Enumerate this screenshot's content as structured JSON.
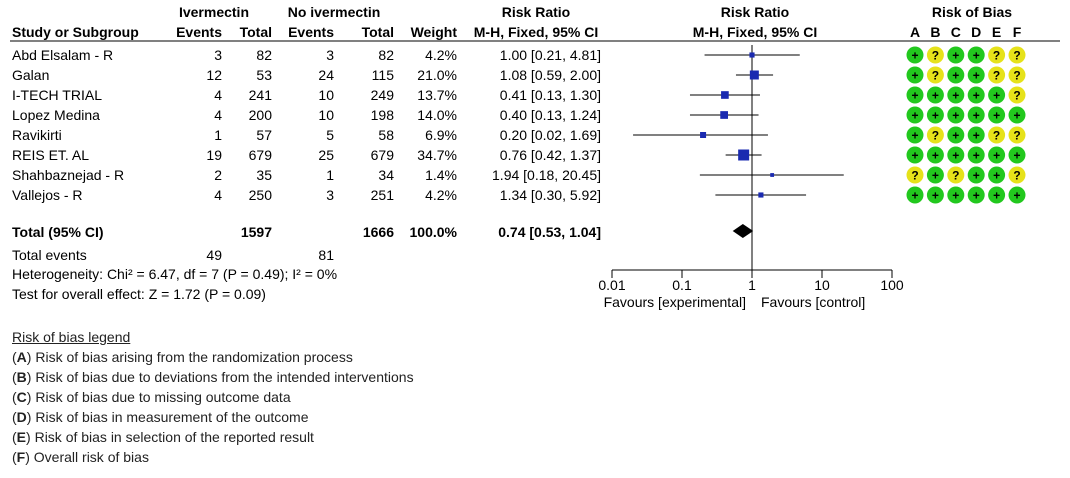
{
  "headers": {
    "group1": "Ivermectin",
    "group2": "No ivermectin",
    "study": "Study or Subgroup",
    "events": "Events",
    "total": "Total",
    "weight": "Weight",
    "rr_title": "Risk Ratio",
    "rr_method": "M-H, Fixed, 95% CI",
    "plot_title": "Risk Ratio",
    "plot_method": "M-H, Fixed, 95% CI",
    "rob_title": "Risk of Bias",
    "rob_letters": [
      "A",
      "B",
      "C",
      "D",
      "E",
      "F"
    ]
  },
  "studies": [
    {
      "name": "Abd Elsalam - R",
      "e1": "3",
      "t1": "82",
      "e2": "3",
      "t2": "82",
      "weight": "4.2%",
      "ci": "1.00 [0.21, 4.81]",
      "bias": [
        "+",
        "?",
        "+",
        "+",
        "?",
        "?"
      ]
    },
    {
      "name": "Galan",
      "e1": "12",
      "t1": "53",
      "e2": "24",
      "t2": "115",
      "weight": "21.0%",
      "ci": "1.08 [0.59, 2.00]",
      "bias": [
        "+",
        "?",
        "+",
        "+",
        "?",
        "?"
      ]
    },
    {
      "name": "I-TECH TRIAL",
      "e1": "4",
      "t1": "241",
      "e2": "10",
      "t2": "249",
      "weight": "13.7%",
      "ci": "0.41 [0.13, 1.30]",
      "bias": [
        "+",
        "+",
        "+",
        "+",
        "+",
        "?"
      ]
    },
    {
      "name": "Lopez Medina",
      "e1": "4",
      "t1": "200",
      "e2": "10",
      "t2": "198",
      "weight": "14.0%",
      "ci": "0.40 [0.13, 1.24]",
      "bias": [
        "+",
        "+",
        "+",
        "+",
        "+",
        "+"
      ]
    },
    {
      "name": "Ravikirti",
      "e1": "1",
      "t1": "57",
      "e2": "5",
      "t2": "58",
      "weight": "6.9%",
      "ci": "0.20 [0.02, 1.69]",
      "bias": [
        "+",
        "?",
        "+",
        "+",
        "?",
        "?"
      ]
    },
    {
      "name": "REIS ET. AL",
      "e1": "19",
      "t1": "679",
      "e2": "25",
      "t2": "679",
      "weight": "34.7%",
      "ci": "0.76 [0.42, 1.37]",
      "bias": [
        "+",
        "+",
        "+",
        "+",
        "+",
        "+"
      ]
    },
    {
      "name": "Shahbaznejad - R",
      "e1": "2",
      "t1": "35",
      "e2": "1",
      "t2": "34",
      "weight": "1.4%",
      "ci": "1.94 [0.18, 20.45]",
      "bias": [
        "?",
        "+",
        "?",
        "+",
        "+",
        "?"
      ]
    },
    {
      "name": "Vallejos - R",
      "e1": "4",
      "t1": "250",
      "e2": "3",
      "t2": "251",
      "weight": "4.2%",
      "ci": "1.34 [0.30, 5.92]",
      "bias": [
        "+",
        "+",
        "+",
        "+",
        "+",
        "+"
      ]
    }
  ],
  "total_row": {
    "label": "Total (95% CI)",
    "t1": "1597",
    "t2": "1666",
    "weight": "100.0%",
    "ci": "0.74 [0.53, 1.04]"
  },
  "total_events": {
    "label": "Total events",
    "e1": "49",
    "e2": "81"
  },
  "heterogeneity": "Heterogeneity: Chi² = 6.47, df = 7 (P = 0.49); I² = 0%",
  "overall_effect": "Test for overall effect: Z = 1.72 (P = 0.09)",
  "axis": {
    "ticks": [
      "0.01",
      "0.1",
      "1",
      "10",
      "100"
    ],
    "favours_left": "Favours [experimental]",
    "favours_right": "Favours [control]"
  },
  "legend": {
    "title": "Risk of bias legend",
    "items": [
      {
        "letter": "A",
        "text": "Risk of bias arising from the randomization process"
      },
      {
        "letter": "B",
        "text": "Risk of bias due to deviations from the intended interventions"
      },
      {
        "letter": "C",
        "text": "Risk of bias due to missing outcome data"
      },
      {
        "letter": "D",
        "text": "Risk of bias in measurement of the outcome"
      },
      {
        "letter": "E",
        "text": "Risk of bias in selection of the reported result"
      },
      {
        "letter": "F",
        "text": "Overall risk of bias"
      }
    ]
  },
  "colors": {
    "low_risk": "#22c81e",
    "some_concerns": "#e6e21a",
    "marker": "#1a2ab0",
    "diamond": "#000000"
  },
  "chart_data": {
    "type": "forest",
    "scale": "log",
    "xlim": [
      0.01,
      100
    ],
    "null_line": 1,
    "studies": [
      {
        "name": "Abd Elsalam - R",
        "rr": 1.0,
        "lo": 0.21,
        "hi": 4.81,
        "weight": 4.2
      },
      {
        "name": "Galan",
        "rr": 1.08,
        "lo": 0.59,
        "hi": 2.0,
        "weight": 21.0
      },
      {
        "name": "I-TECH TRIAL",
        "rr": 0.41,
        "lo": 0.13,
        "hi": 1.3,
        "weight": 13.7
      },
      {
        "name": "Lopez Medina",
        "rr": 0.4,
        "lo": 0.13,
        "hi": 1.24,
        "weight": 14.0
      },
      {
        "name": "Ravikirti",
        "rr": 0.2,
        "lo": 0.02,
        "hi": 1.69,
        "weight": 6.9
      },
      {
        "name": "REIS ET. AL",
        "rr": 0.76,
        "lo": 0.42,
        "hi": 1.37,
        "weight": 34.7
      },
      {
        "name": "Shahbaznejad - R",
        "rr": 1.94,
        "lo": 0.18,
        "hi": 20.45,
        "weight": 1.4
      },
      {
        "name": "Vallejos - R",
        "rr": 1.34,
        "lo": 0.3,
        "hi": 5.92,
        "weight": 4.2
      }
    ],
    "pooled": {
      "rr": 0.74,
      "lo": 0.53,
      "hi": 1.04
    }
  }
}
